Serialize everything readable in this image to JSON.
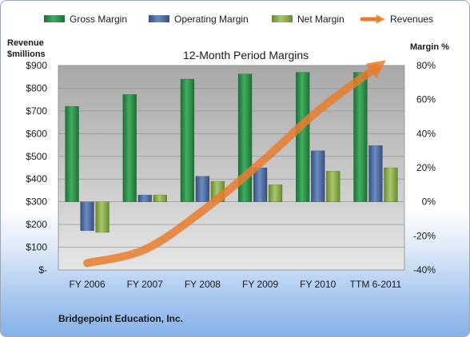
{
  "chart_data": {
    "type": "bar",
    "title": "12-Month Period Margins",
    "categories": [
      "FY 2006",
      "FY 2007",
      "FY 2008",
      "FY 2009",
      "FY 2010",
      "TTM 6-2011"
    ],
    "left_axis": {
      "title_line1": "Revenue",
      "title_line2": "$millions",
      "range": [
        0,
        900
      ],
      "tick_labels": [
        "$-",
        "$100",
        "$200",
        "$300",
        "$400",
        "$500",
        "$600",
        "$700",
        "$800",
        "$900"
      ]
    },
    "right_axis": {
      "title": "Margin %",
      "range": [
        -40,
        80
      ],
      "tick_labels": [
        "-40%",
        "-20%",
        "0%",
        "20%",
        "40%",
        "60%",
        "80%"
      ]
    },
    "series": [
      {
        "name": "Gross Margin",
        "kind": "bar",
        "axis": "right",
        "color": "#2e8b4a",
        "values": [
          56,
          63,
          72,
          75,
          76,
          76
        ]
      },
      {
        "name": "Operating Margin",
        "kind": "bar",
        "axis": "right",
        "color": "#4f6fa8",
        "values": [
          -17,
          4,
          15,
          20,
          30,
          33
        ]
      },
      {
        "name": "Net Margin",
        "kind": "bar",
        "axis": "right",
        "color": "#8fb04e",
        "values": [
          -18,
          4,
          12,
          10,
          18,
          20
        ]
      },
      {
        "name": "Revenues",
        "kind": "line",
        "axis": "left",
        "color": "#e87c2e",
        "values": [
          30,
          90,
          260,
          470,
          700,
          890
        ]
      }
    ],
    "grid": "horizontal",
    "legend_position": "top"
  },
  "footer": {
    "company": "Bridgepoint Education, Inc."
  }
}
